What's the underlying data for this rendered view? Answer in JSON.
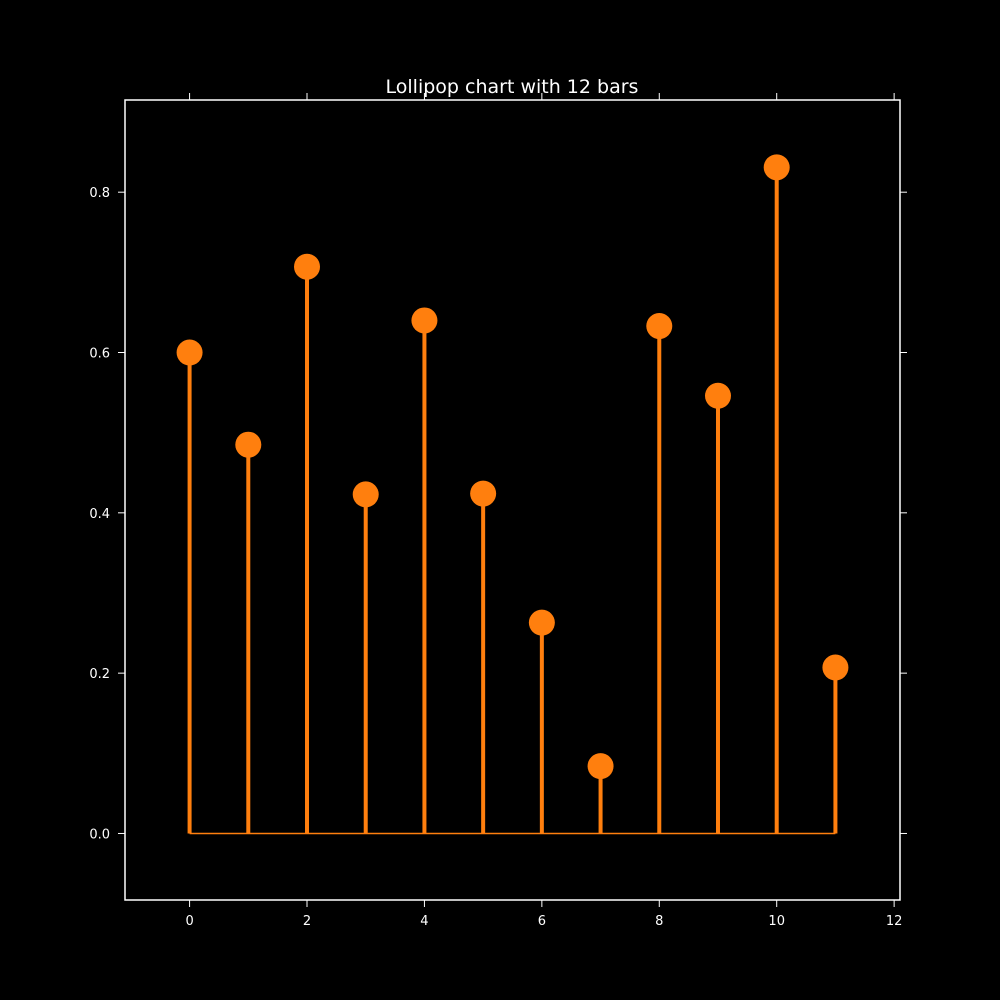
{
  "chart_data": {
    "type": "lollipop",
    "title": "Lollipop chart with 12 bars",
    "xlabel": "",
    "ylabel": "",
    "x": [
      0,
      1,
      2,
      3,
      4,
      5,
      6,
      7,
      8,
      9,
      10,
      11
    ],
    "values": [
      0.6,
      0.485,
      0.707,
      0.423,
      0.64,
      0.424,
      0.263,
      0.084,
      0.633,
      0.546,
      0.831,
      0.207
    ],
    "xlim": [
      -1.1,
      12.1
    ],
    "ylim": [
      -0.083,
      0.915
    ],
    "xticks": [
      0,
      2,
      4,
      6,
      8,
      10,
      12
    ],
    "yticks": [
      0.0,
      0.2,
      0.4,
      0.6,
      0.8
    ],
    "xtick_labels": [
      "0",
      "2",
      "4",
      "6",
      "8",
      "10",
      "12"
    ],
    "ytick_labels": [
      "0.0",
      "0.2",
      "0.4",
      "0.6",
      "0.8"
    ],
    "grid": false,
    "legend": "none",
    "colors": {
      "background": "#000000",
      "axes": "#ffffff",
      "text": "#ffffff",
      "marker": "#ff7f0e",
      "stem": "#ff7f0e"
    }
  }
}
